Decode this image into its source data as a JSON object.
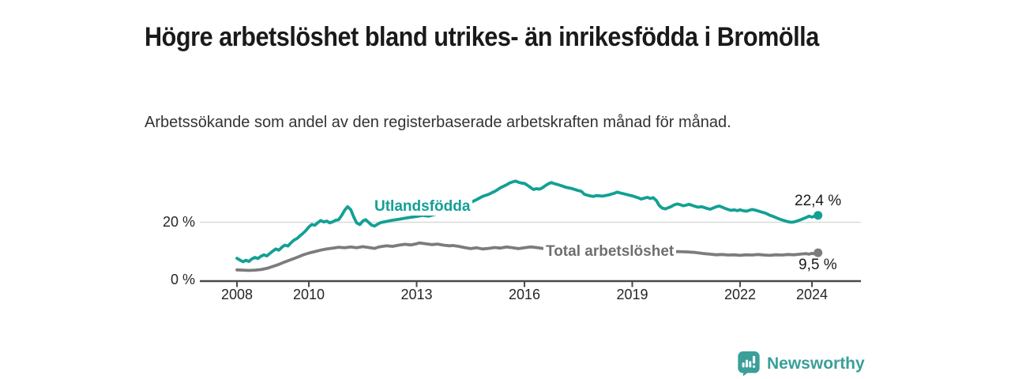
{
  "header": {
    "title": "Högre arbetslöshet bland utrikes- än inrikesfödda i Bromölla",
    "subtitle": "Arbetssökande som andel av den registerbaserade arbetskraften månad för månad."
  },
  "chart_data": {
    "type": "line",
    "title": "Högre arbetslöshet bland utrikes- än inrikesfödda i Bromölla",
    "subtitle": "Arbetssökande som andel av den registerbaserade arbetskraften månad för månad.",
    "unit": "percent",
    "x_axis": {
      "ticks": [
        "2008",
        "2010",
        "2013",
        "2016",
        "2019",
        "2022",
        "2024"
      ],
      "tick_years": [
        2008,
        2010,
        2013,
        2016,
        2019,
        2022,
        2024
      ],
      "range": [
        2007.8,
        2024.6
      ]
    },
    "y_axis": {
      "ticks": [
        "0 %",
        "20 %"
      ],
      "tick_values": [
        0,
        20
      ],
      "range": [
        0,
        38
      ],
      "gridlines": [
        20
      ]
    },
    "grid": "horizontal-only",
    "legend": "inline-labels",
    "colors": {
      "axis": "#4a4a4a",
      "gridline": "#d9d9d9",
      "value_label": "#1a1a1a"
    },
    "series": [
      {
        "name": "Utlandsfödda",
        "color": "#13a094",
        "label_color": "#13a094",
        "end_label": "22,4 %",
        "end_value": 22.4,
        "points": [
          [
            2008.0,
            7.6
          ],
          [
            2008.08,
            7.0
          ],
          [
            2008.17,
            6.4
          ],
          [
            2008.25,
            6.9
          ],
          [
            2008.33,
            6.5
          ],
          [
            2008.42,
            7.4
          ],
          [
            2008.5,
            7.9
          ],
          [
            2008.58,
            7.5
          ],
          [
            2008.67,
            8.3
          ],
          [
            2008.75,
            8.8
          ],
          [
            2008.83,
            8.4
          ],
          [
            2008.92,
            9.3
          ],
          [
            2009.0,
            10.1
          ],
          [
            2009.08,
            10.8
          ],
          [
            2009.17,
            10.4
          ],
          [
            2009.25,
            11.4
          ],
          [
            2009.33,
            12.1
          ],
          [
            2009.42,
            11.8
          ],
          [
            2009.5,
            12.9
          ],
          [
            2009.58,
            13.8
          ],
          [
            2009.67,
            14.4
          ],
          [
            2009.75,
            15.3
          ],
          [
            2009.83,
            16.1
          ],
          [
            2009.92,
            17.2
          ],
          [
            2010.0,
            18.4
          ],
          [
            2010.08,
            19.2
          ],
          [
            2010.17,
            19.0
          ],
          [
            2010.25,
            19.9
          ],
          [
            2010.33,
            20.6
          ],
          [
            2010.42,
            20.1
          ],
          [
            2010.5,
            20.4
          ],
          [
            2010.58,
            19.8
          ],
          [
            2010.67,
            20.2
          ],
          [
            2010.75,
            20.7
          ],
          [
            2010.83,
            20.9
          ],
          [
            2010.92,
            22.5
          ],
          [
            2011.0,
            24.2
          ],
          [
            2011.08,
            25.4
          ],
          [
            2011.17,
            24.3
          ],
          [
            2011.25,
            21.8
          ],
          [
            2011.33,
            19.8
          ],
          [
            2011.42,
            19.2
          ],
          [
            2011.5,
            20.4
          ],
          [
            2011.58,
            20.9
          ],
          [
            2011.67,
            19.9
          ],
          [
            2011.75,
            19.0
          ],
          [
            2011.83,
            18.7
          ],
          [
            2011.92,
            19.4
          ],
          [
            2012.0,
            19.9
          ],
          [
            2012.17,
            20.3
          ],
          [
            2012.33,
            20.7
          ],
          [
            2012.5,
            21.0
          ],
          [
            2012.67,
            21.4
          ],
          [
            2012.83,
            21.7
          ],
          [
            2013.0,
            22.0
          ],
          [
            2013.17,
            22.4
          ],
          [
            2013.33,
            22.1
          ],
          [
            2013.5,
            22.7
          ],
          [
            2013.67,
            23.2
          ],
          [
            2013.83,
            23.8
          ],
          [
            2014.0,
            24.4
          ],
          [
            2014.17,
            25.1
          ],
          [
            2014.33,
            25.9
          ],
          [
            2014.5,
            26.8
          ],
          [
            2014.67,
            27.8
          ],
          [
            2014.83,
            28.9
          ],
          [
            2015.0,
            29.6
          ],
          [
            2015.08,
            30.1
          ],
          [
            2015.17,
            30.6
          ],
          [
            2015.25,
            31.2
          ],
          [
            2015.33,
            31.9
          ],
          [
            2015.42,
            32.4
          ],
          [
            2015.5,
            32.9
          ],
          [
            2015.58,
            33.5
          ],
          [
            2015.67,
            33.9
          ],
          [
            2015.75,
            34.2
          ],
          [
            2015.83,
            33.8
          ],
          [
            2015.92,
            33.5
          ],
          [
            2016.0,
            33.4
          ],
          [
            2016.08,
            32.8
          ],
          [
            2016.17,
            32.0
          ],
          [
            2016.25,
            31.3
          ],
          [
            2016.33,
            31.6
          ],
          [
            2016.42,
            31.4
          ],
          [
            2016.5,
            31.9
          ],
          [
            2016.58,
            32.6
          ],
          [
            2016.67,
            33.3
          ],
          [
            2016.75,
            33.7
          ],
          [
            2016.83,
            33.3
          ],
          [
            2016.92,
            33.0
          ],
          [
            2017.0,
            32.7
          ],
          [
            2017.17,
            32.0
          ],
          [
            2017.33,
            31.6
          ],
          [
            2017.5,
            30.9
          ],
          [
            2017.58,
            30.7
          ],
          [
            2017.67,
            29.6
          ],
          [
            2017.83,
            29.1
          ],
          [
            2017.92,
            28.9
          ],
          [
            2018.0,
            29.2
          ],
          [
            2018.17,
            29.0
          ],
          [
            2018.33,
            29.4
          ],
          [
            2018.5,
            30.0
          ],
          [
            2018.58,
            30.4
          ],
          [
            2018.67,
            30.1
          ],
          [
            2018.83,
            29.6
          ],
          [
            2019.0,
            29.1
          ],
          [
            2019.17,
            28.4
          ],
          [
            2019.25,
            28.0
          ],
          [
            2019.33,
            28.3
          ],
          [
            2019.42,
            28.6
          ],
          [
            2019.5,
            28.2
          ],
          [
            2019.58,
            28.5
          ],
          [
            2019.67,
            27.5
          ],
          [
            2019.75,
            25.8
          ],
          [
            2019.83,
            24.9
          ],
          [
            2019.92,
            24.6
          ],
          [
            2020.0,
            25.0
          ],
          [
            2020.08,
            25.4
          ],
          [
            2020.17,
            26.0
          ],
          [
            2020.25,
            26.3
          ],
          [
            2020.33,
            26.1
          ],
          [
            2020.42,
            25.7
          ],
          [
            2020.5,
            25.9
          ],
          [
            2020.58,
            26.2
          ],
          [
            2020.67,
            25.8
          ],
          [
            2020.75,
            25.5
          ],
          [
            2020.83,
            25.2
          ],
          [
            2020.92,
            25.4
          ],
          [
            2021.0,
            25.1
          ],
          [
            2021.08,
            24.8
          ],
          [
            2021.17,
            24.5
          ],
          [
            2021.25,
            24.9
          ],
          [
            2021.33,
            25.3
          ],
          [
            2021.42,
            25.6
          ],
          [
            2021.5,
            25.2
          ],
          [
            2021.58,
            24.8
          ],
          [
            2021.67,
            24.4
          ],
          [
            2021.75,
            24.1
          ],
          [
            2021.83,
            24.3
          ],
          [
            2021.92,
            24.0
          ],
          [
            2022.0,
            24.3
          ],
          [
            2022.08,
            24.0
          ],
          [
            2022.17,
            23.8
          ],
          [
            2022.25,
            24.1
          ],
          [
            2022.33,
            24.4
          ],
          [
            2022.42,
            24.2
          ],
          [
            2022.5,
            23.9
          ],
          [
            2022.58,
            23.6
          ],
          [
            2022.67,
            23.3
          ],
          [
            2022.75,
            22.9
          ],
          [
            2022.83,
            22.4
          ],
          [
            2022.92,
            22.0
          ],
          [
            2023.0,
            21.6
          ],
          [
            2023.08,
            21.2
          ],
          [
            2023.17,
            20.8
          ],
          [
            2023.25,
            20.5
          ],
          [
            2023.33,
            20.2
          ],
          [
            2023.42,
            20.0
          ],
          [
            2023.5,
            20.1
          ],
          [
            2023.58,
            20.4
          ],
          [
            2023.67,
            20.8
          ],
          [
            2023.75,
            21.2
          ],
          [
            2023.83,
            21.6
          ],
          [
            2023.92,
            22.1
          ],
          [
            2024.0,
            21.8
          ],
          [
            2024.08,
            22.1
          ],
          [
            2024.17,
            22.4
          ]
        ]
      },
      {
        "name": "Total arbetslöshet",
        "color": "#7c7c7c",
        "label_color": "#6f6f6f",
        "end_label": "9,5 %",
        "end_value": 9.5,
        "points": [
          [
            2008.0,
            3.6
          ],
          [
            2008.17,
            3.5
          ],
          [
            2008.33,
            3.4
          ],
          [
            2008.5,
            3.5
          ],
          [
            2008.67,
            3.7
          ],
          [
            2008.83,
            4.1
          ],
          [
            2009.0,
            4.8
          ],
          [
            2009.17,
            5.5
          ],
          [
            2009.33,
            6.3
          ],
          [
            2009.5,
            7.1
          ],
          [
            2009.67,
            7.9
          ],
          [
            2009.83,
            8.7
          ],
          [
            2010.0,
            9.4
          ],
          [
            2010.17,
            9.9
          ],
          [
            2010.33,
            10.4
          ],
          [
            2010.5,
            10.8
          ],
          [
            2010.67,
            11.1
          ],
          [
            2010.83,
            11.4
          ],
          [
            2011.0,
            11.2
          ],
          [
            2011.17,
            11.5
          ],
          [
            2011.33,
            11.2
          ],
          [
            2011.5,
            11.6
          ],
          [
            2011.67,
            11.3
          ],
          [
            2011.83,
            11.0
          ],
          [
            2011.92,
            11.4
          ],
          [
            2012.0,
            11.6
          ],
          [
            2012.17,
            11.9
          ],
          [
            2012.33,
            11.7
          ],
          [
            2012.5,
            12.1
          ],
          [
            2012.67,
            12.4
          ],
          [
            2012.83,
            12.2
          ],
          [
            2013.0,
            12.6
          ],
          [
            2013.08,
            12.9
          ],
          [
            2013.25,
            12.6
          ],
          [
            2013.42,
            12.3
          ],
          [
            2013.58,
            12.5
          ],
          [
            2013.75,
            12.1
          ],
          [
            2013.92,
            11.9
          ],
          [
            2014.0,
            12.0
          ],
          [
            2014.17,
            11.7
          ],
          [
            2014.33,
            11.3
          ],
          [
            2014.5,
            10.9
          ],
          [
            2014.67,
            11.2
          ],
          [
            2014.83,
            10.8
          ],
          [
            2015.0,
            11.0
          ],
          [
            2015.17,
            11.3
          ],
          [
            2015.33,
            11.1
          ],
          [
            2015.5,
            11.5
          ],
          [
            2015.67,
            11.2
          ],
          [
            2015.83,
            10.9
          ],
          [
            2016.0,
            11.2
          ],
          [
            2016.17,
            11.5
          ],
          [
            2016.33,
            11.3
          ],
          [
            2016.5,
            11.0
          ],
          [
            2016.67,
            11.3
          ],
          [
            2016.83,
            11.1
          ],
          [
            2017.0,
            10.9
          ],
          [
            2017.25,
            10.6
          ],
          [
            2017.5,
            10.4
          ],
          [
            2017.75,
            10.2
          ],
          [
            2018.0,
            10.0
          ],
          [
            2018.25,
            9.8
          ],
          [
            2018.5,
            9.7
          ],
          [
            2018.75,
            9.6
          ],
          [
            2019.0,
            9.5
          ],
          [
            2019.25,
            9.4
          ],
          [
            2019.5,
            9.3
          ],
          [
            2019.75,
            9.5
          ],
          [
            2020.0,
            9.7
          ],
          [
            2020.25,
            9.9
          ],
          [
            2020.5,
            9.8
          ],
          [
            2020.75,
            9.6
          ],
          [
            2021.0,
            9.2
          ],
          [
            2021.17,
            9.0
          ],
          [
            2021.33,
            8.8
          ],
          [
            2021.5,
            8.9
          ],
          [
            2021.67,
            8.7
          ],
          [
            2021.83,
            8.8
          ],
          [
            2022.0,
            8.6
          ],
          [
            2022.17,
            8.8
          ],
          [
            2022.33,
            8.7
          ],
          [
            2022.5,
            8.9
          ],
          [
            2022.67,
            8.7
          ],
          [
            2022.83,
            8.6
          ],
          [
            2023.0,
            8.8
          ],
          [
            2023.17,
            8.7
          ],
          [
            2023.33,
            8.9
          ],
          [
            2023.5,
            8.8
          ],
          [
            2023.67,
            9.0
          ],
          [
            2023.83,
            9.2
          ],
          [
            2023.92,
            9.0
          ],
          [
            2024.0,
            9.3
          ],
          [
            2024.08,
            9.1
          ],
          [
            2024.17,
            9.5
          ]
        ]
      }
    ]
  },
  "footer": {
    "brand": "Newsworthy"
  }
}
